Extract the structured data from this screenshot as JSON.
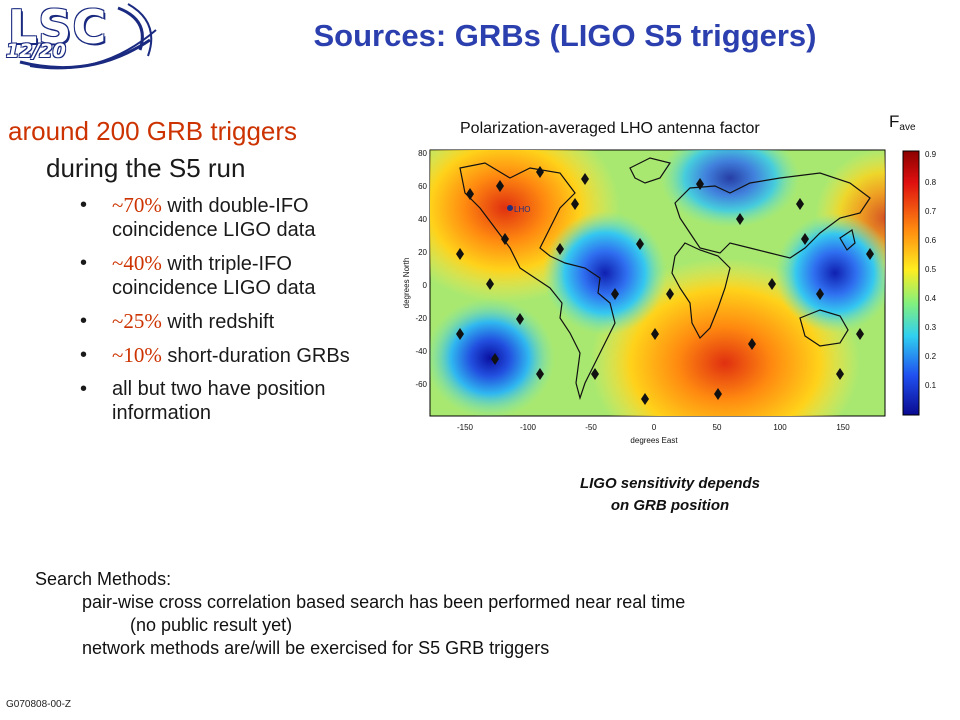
{
  "logo": {
    "text": "LSC",
    "page": "12/20"
  },
  "title": "Sources: GRBs (LIGO S5 triggers)",
  "headline": "around 200 GRB triggers",
  "subheadline": "during the S5 run",
  "bullets": [
    {
      "pct": "~70%",
      "text": "with double-IFO coincidence LIGO data"
    },
    {
      "pct": "~40%",
      "text": "with triple-IFO coincidence LIGO data"
    },
    {
      "pct": "~25%",
      "text": "with redshift"
    },
    {
      "pct": "~10%",
      "text": "short-duration GRBs"
    },
    {
      "pct": "",
      "text": "all but two have position information"
    }
  ],
  "map": {
    "title": "Polarization-averaged LHO antenna factor",
    "ylabel": "degrees North",
    "xlabel": "degrees East",
    "marker_label": "LHO",
    "fave_label": "F",
    "fave_sub": "ave",
    "x_ticks": [
      "-150",
      "-100",
      "-50",
      "0",
      "50",
      "100",
      "150"
    ],
    "y_ticks": [
      "80",
      "60",
      "40",
      "20",
      "0",
      "-20",
      "-40",
      "-60"
    ],
    "colorbar_ticks": [
      "0.9",
      "0.8",
      "0.7",
      "0.6",
      "0.5",
      "0.4",
      "0.3",
      "0.2",
      "0.1"
    ]
  },
  "caption": {
    "line1": "LIGO sensitivity depends",
    "line2": "on GRB position"
  },
  "search": {
    "heading": "Search Methods:",
    "line1": "pair-wise cross correlation based search has been performed near real time",
    "line2": "(no public result yet)",
    "line3": "network methods are/will be exercised for S5 GRB triggers"
  },
  "footer": "G070808-00-Z",
  "colors": {
    "title": "#2b3fae",
    "accent": "#cc3300"
  }
}
